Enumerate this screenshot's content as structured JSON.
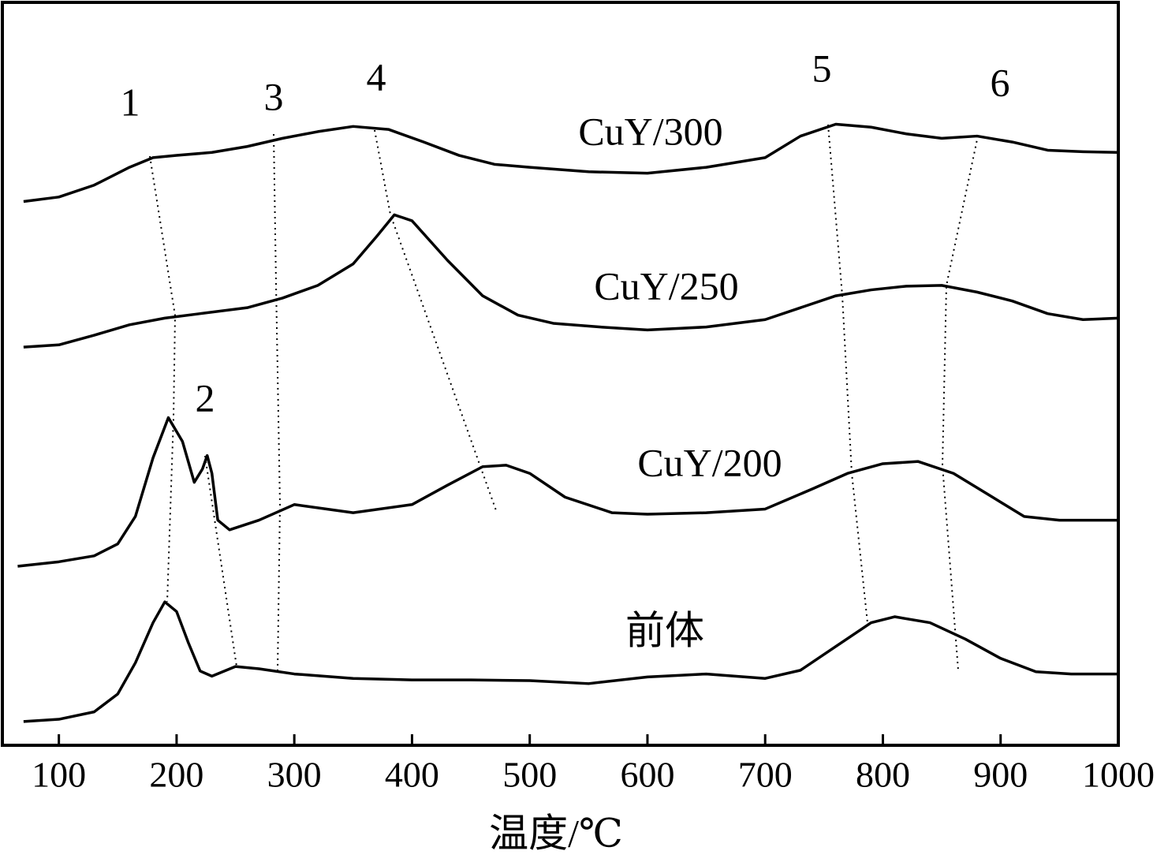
{
  "chart_data": {
    "type": "line",
    "xlabel": "温度/℃",
    "xlim": [
      52,
      1000
    ],
    "xticks": [
      100,
      200,
      300,
      400,
      500,
      600,
      700,
      800,
      900,
      1000
    ],
    "ylim": [
      0,
      100
    ],
    "annotations": [
      "1",
      "2",
      "3",
      "4",
      "5",
      "6"
    ],
    "series": [
      {
        "name": "CuY/300",
        "color": "#000000",
        "x": [
          70,
          100,
          130,
          160,
          180,
          200,
          230,
          260,
          290,
          320,
          350,
          380,
          410,
          440,
          470,
          500,
          550,
          600,
          650,
          700,
          730,
          760,
          790,
          820,
          850,
          880,
          910,
          940,
          970,
          1000
        ],
        "values": [
          73.2,
          73.8,
          75.4,
          77.8,
          79.1,
          79.4,
          79.8,
          80.6,
          81.7,
          82.6,
          83.3,
          82.9,
          81.2,
          79.4,
          78.2,
          77.8,
          77.2,
          77.0,
          77.8,
          79.1,
          82.0,
          83.6,
          83.2,
          82.3,
          81.7,
          82.0,
          81.2,
          80.1,
          79.9,
          79.8
        ]
      },
      {
        "name": "CuY/250",
        "color": "#000000",
        "x": [
          70,
          100,
          130,
          160,
          190,
          220,
          260,
          290,
          320,
          350,
          370,
          385,
          400,
          430,
          460,
          490,
          520,
          560,
          600,
          650,
          700,
          730,
          760,
          790,
          820,
          850,
          880,
          910,
          940,
          970,
          1000
        ],
        "values": [
          53.6,
          53.9,
          55.2,
          56.6,
          57.5,
          58.1,
          58.9,
          60.2,
          61.9,
          64.8,
          68.5,
          71.4,
          70.6,
          65.3,
          60.5,
          57.9,
          56.8,
          56.3,
          55.9,
          56.3,
          57.3,
          58.9,
          60.5,
          61.3,
          61.8,
          61.9,
          61.0,
          59.8,
          58.1,
          57.3,
          57.5
        ]
      },
      {
        "name": "CuY/200",
        "color": "#000000",
        "x": [
          65,
          100,
          130,
          150,
          165,
          180,
          193,
          205,
          215,
          222,
          226,
          230,
          235,
          245,
          270,
          300,
          350,
          400,
          430,
          460,
          480,
          500,
          530,
          570,
          600,
          650,
          700,
          740,
          770,
          800,
          830,
          860,
          890,
          920,
          950,
          1000
        ],
        "values": [
          24.1,
          24.7,
          25.5,
          27.1,
          30.8,
          38.7,
          44.1,
          40.9,
          35.4,
          37.2,
          39.0,
          36.6,
          30.3,
          29.0,
          30.3,
          32.4,
          31.3,
          32.4,
          35.0,
          37.5,
          37.7,
          36.6,
          33.4,
          31.3,
          31.1,
          31.3,
          31.8,
          34.5,
          36.6,
          37.9,
          38.2,
          36.6,
          33.7,
          30.8,
          30.3,
          30.3
        ]
      },
      {
        "name": "前体",
        "color": "#000000",
        "x": [
          70,
          100,
          130,
          150,
          165,
          180,
          190,
          200,
          210,
          220,
          230,
          250,
          270,
          300,
          350,
          400,
          450,
          500,
          550,
          600,
          650,
          700,
          730,
          760,
          790,
          810,
          840,
          870,
          900,
          930,
          960,
          1000
        ],
        "values": [
          3.2,
          3.5,
          4.5,
          6.9,
          11.1,
          16.5,
          19.3,
          18.0,
          13.8,
          10.0,
          9.3,
          10.6,
          10.3,
          9.6,
          9.0,
          8.8,
          8.8,
          8.7,
          8.3,
          9.2,
          9.6,
          9.0,
          10.1,
          13.3,
          16.5,
          17.3,
          16.5,
          14.3,
          11.7,
          9.9,
          9.6,
          9.6
        ]
      }
    ]
  }
}
